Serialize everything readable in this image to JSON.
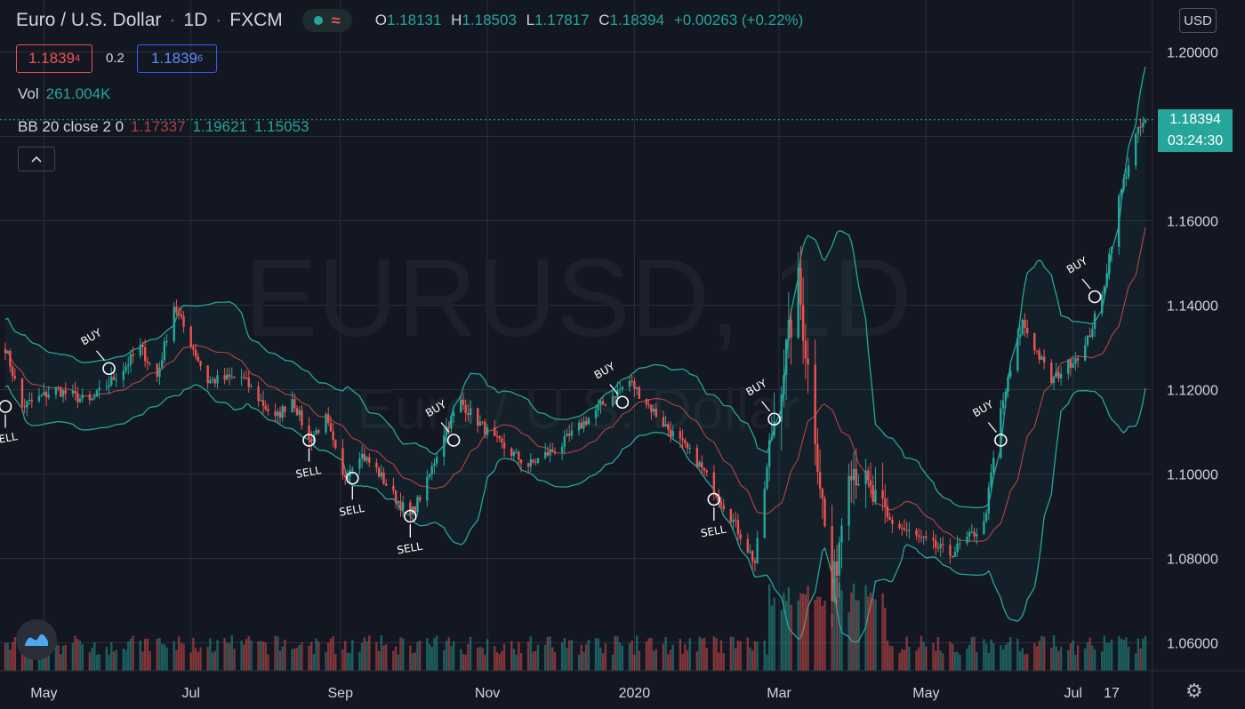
{
  "header": {
    "symbol": "Euro / U.S. Dollar",
    "interval": "1D",
    "source": "FXCM",
    "ohlc": {
      "o_label": "O",
      "o": "1.18131",
      "h_label": "H",
      "h": "1.18503",
      "l_label": "L",
      "l": "1.17817",
      "c_label": "C",
      "c": "1.18394",
      "change": "+0.00263 (+0.22%)"
    }
  },
  "trade": {
    "sell_price": "1.1839",
    "sell_price_sup": "4",
    "spread": "0.2",
    "buy_price": "1.1839",
    "buy_price_sup": "6"
  },
  "volume": {
    "label": "Vol",
    "value": "261.004K"
  },
  "bb": {
    "label": "BB 20 close 2 0",
    "basis": "1.17337",
    "upper": "1.19621",
    "lower": "1.15053"
  },
  "axis": {
    "currency": "USD",
    "price_tag": "1.18394",
    "countdown": "03:24:30"
  },
  "watermark": {
    "main": "EURUSD, 1D",
    "sub": "Euro / U.S. Dollar"
  },
  "colors": {
    "up": "#26a69a",
    "down": "#ef5350",
    "background": "#131722",
    "grid": "#2a2e39",
    "band": "#26a69a",
    "basis": "#ef5350"
  },
  "icons": {
    "collapse": "chevron-up-icon",
    "logo": "tradingview-logo",
    "settings": "gear-icon"
  },
  "chart_data": {
    "type": "candlestick",
    "title": "EURUSD, 1D",
    "x_ticks": [
      "May",
      "Jul",
      "Sep",
      "Nov",
      "2020",
      "Mar",
      "May",
      "Jul",
      "17"
    ],
    "y_ticks": [
      "1.06000",
      "1.08000",
      "1.10000",
      "1.12000",
      "1.14000",
      "1.16000",
      "1.18000",
      "1.20000"
    ],
    "ylim": [
      1.054,
      1.206
    ],
    "x_range": [
      "2019-04-15",
      "2020-07-17"
    ],
    "last_price": 1.18394,
    "close_path": [
      [
        "2019-04-15",
        1.13
      ],
      [
        "2019-04-22",
        1.116
      ],
      [
        "2019-05-06",
        1.12
      ],
      [
        "2019-05-20",
        1.117
      ],
      [
        "2019-06-03",
        1.125
      ],
      [
        "2019-06-10",
        1.13
      ],
      [
        "2019-06-17",
        1.123
      ],
      [
        "2019-06-24",
        1.14
      ],
      [
        "2019-07-08",
        1.122
      ],
      [
        "2019-07-22",
        1.123
      ],
      [
        "2019-08-05",
        1.113
      ],
      [
        "2019-08-12",
        1.118
      ],
      [
        "2019-08-19",
        1.108
      ],
      [
        "2019-08-26",
        1.113
      ],
      [
        "2019-09-02",
        1.099
      ],
      [
        "2019-09-09",
        1.105
      ],
      [
        "2019-09-16",
        1.101
      ],
      [
        "2019-09-23",
        1.095
      ],
      [
        "2019-09-30",
        1.09
      ],
      [
        "2019-10-07",
        1.098
      ],
      [
        "2019-10-14",
        1.11
      ],
      [
        "2019-10-21",
        1.117
      ],
      [
        "2019-11-04",
        1.108
      ],
      [
        "2019-11-18",
        1.102
      ],
      [
        "2019-12-02",
        1.107
      ],
      [
        "2019-12-16",
        1.115
      ],
      [
        "2019-12-30",
        1.122
      ],
      [
        "2020-01-13",
        1.112
      ],
      [
        "2020-01-27",
        1.103
      ],
      [
        "2020-02-10",
        1.09
      ],
      [
        "2020-02-20",
        1.079
      ],
      [
        "2020-02-27",
        1.11
      ],
      [
        "2020-03-09",
        1.145
      ],
      [
        "2020-03-16",
        1.11
      ],
      [
        "2020-03-23",
        1.07
      ],
      [
        "2020-03-30",
        1.104
      ],
      [
        "2020-04-13",
        1.09
      ],
      [
        "2020-04-27",
        1.085
      ],
      [
        "2020-05-11",
        1.081
      ],
      [
        "2020-05-25",
        1.088
      ],
      [
        "2020-06-01",
        1.115
      ],
      [
        "2020-06-10",
        1.136
      ],
      [
        "2020-06-22",
        1.122
      ],
      [
        "2020-07-06",
        1.13
      ],
      [
        "2020-07-13",
        1.142
      ],
      [
        "2020-07-20",
        1.165
      ],
      [
        "2020-07-27",
        1.18
      ],
      [
        "2020-07-31",
        1.184
      ]
    ],
    "bollinger": {
      "period": 20,
      "stdev": 2,
      "basis": 1.17337,
      "upper": 1.19621,
      "lower": 1.15053
    },
    "signals": [
      {
        "label": "SELL",
        "date": "2019-04-15",
        "price": 1.116
      },
      {
        "label": "BUY",
        "date": "2019-05-28",
        "price": 1.125
      },
      {
        "label": "SELL",
        "date": "2019-08-19",
        "price": 1.108
      },
      {
        "label": "SELL",
        "date": "2019-09-06",
        "price": 1.099
      },
      {
        "label": "SELL",
        "date": "2019-09-30",
        "price": 1.09
      },
      {
        "label": "BUY",
        "date": "2019-10-18",
        "price": 1.108
      },
      {
        "label": "BUY",
        "date": "2019-12-27",
        "price": 1.117
      },
      {
        "label": "SELL",
        "date": "2020-02-03",
        "price": 1.094
      },
      {
        "label": "BUY",
        "date": "2020-02-28",
        "price": 1.113
      },
      {
        "label": "BUY",
        "date": "2020-06-01",
        "price": 1.108
      },
      {
        "label": "BUY",
        "date": "2020-07-10",
        "price": 1.142
      }
    ]
  }
}
